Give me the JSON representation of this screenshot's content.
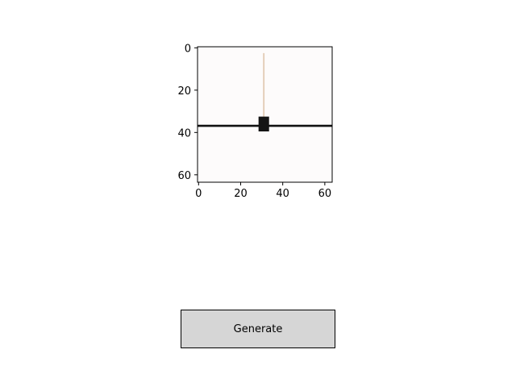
{
  "chart_data": {
    "type": "heatmap",
    "image_size": [
      64,
      64
    ],
    "xlim": [
      0,
      63
    ],
    "ylim": [
      63,
      0
    ],
    "x_ticks": [
      "0",
      "20",
      "40",
      "60"
    ],
    "y_ticks": [
      "0",
      "20",
      "40",
      "60"
    ],
    "x_tick_values": [
      0,
      20,
      40,
      60
    ],
    "y_tick_values": [
      0,
      20,
      40,
      60
    ],
    "grid": false,
    "background_color": "#fdfbfb",
    "features": {
      "horizontal_line": {
        "row": 37,
        "from_col": 0,
        "to_col": 63,
        "color": "#111111"
      },
      "vertical_stroke": {
        "col": 31,
        "from_row": 3,
        "to_row": 36,
        "color": "#e2cbb4"
      },
      "dark_block": {
        "col_range": [
          29,
          34
        ],
        "row_range": [
          33,
          40
        ],
        "color": "#141414"
      }
    }
  },
  "controls": {
    "generate_label": "Generate"
  }
}
